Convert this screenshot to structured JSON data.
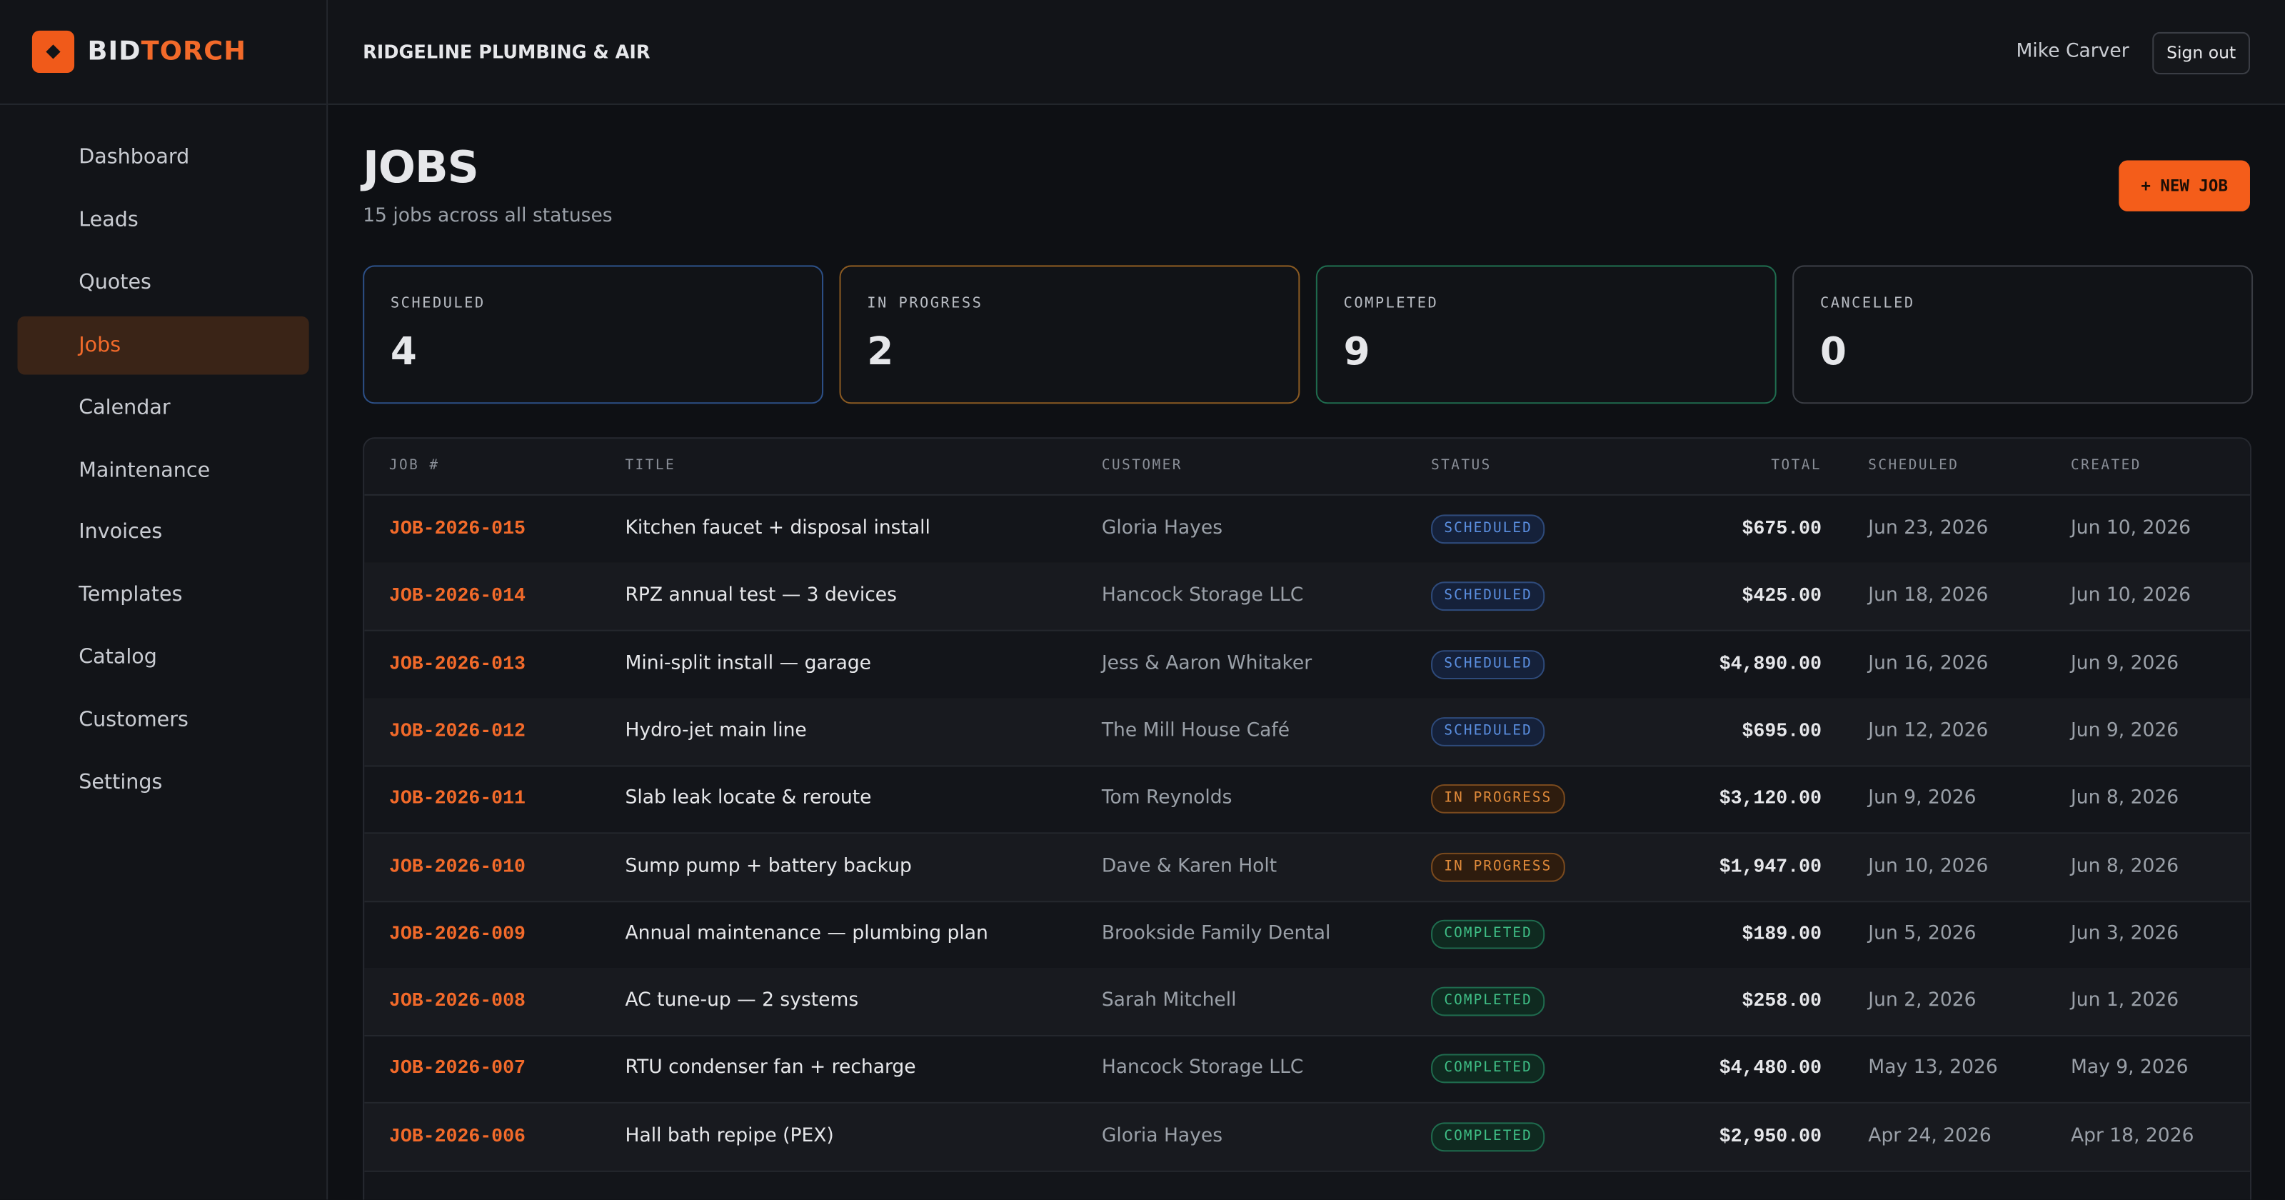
{
  "brand": {
    "part1": "BID",
    "part2": "TORCH"
  },
  "header": {
    "company": "RIDGELINE PLUMBING & AIR",
    "user": "Mike Carver",
    "sign_out": "Sign out"
  },
  "nav": [
    "Dashboard",
    "Leads",
    "Quotes",
    "Jobs",
    "Calendar",
    "Maintenance",
    "Invoices",
    "Templates",
    "Catalog",
    "Customers",
    "Settings"
  ],
  "page": {
    "title": "JOBS",
    "subtitle": "15 jobs across all statuses",
    "new_button": "+ NEW JOB"
  },
  "stats": [
    {
      "label": "SCHEDULED",
      "value": "4"
    },
    {
      "label": "IN PROGRESS",
      "value": "2"
    },
    {
      "label": "COMPLETED",
      "value": "9"
    },
    {
      "label": "CANCELLED",
      "value": "0"
    }
  ],
  "table": {
    "headers": [
      "JOB #",
      "TITLE",
      "CUSTOMER",
      "STATUS",
      "TOTAL",
      "SCHEDULED",
      "CREATED"
    ],
    "rows": [
      [
        "JOB-2026-015",
        "Kitchen faucet + disposal install",
        "Gloria Hayes",
        "SCHEDULED",
        "$675.00",
        "Jun 23, 2026",
        "Jun 10, 2026"
      ],
      [
        "JOB-2026-014",
        "RPZ annual test — 3 devices",
        "Hancock Storage LLC",
        "SCHEDULED",
        "$425.00",
        "Jun 18, 2026",
        "Jun 10, 2026"
      ],
      [
        "JOB-2026-013",
        "Mini-split install — garage",
        "Jess & Aaron Whitaker",
        "SCHEDULED",
        "$4,890.00",
        "Jun 16, 2026",
        "Jun 9, 2026"
      ],
      [
        "JOB-2026-012",
        "Hydro-jet main line",
        "The Mill House Café",
        "SCHEDULED",
        "$695.00",
        "Jun 12, 2026",
        "Jun 9, 2026"
      ],
      [
        "JOB-2026-011",
        "Slab leak locate & reroute",
        "Tom Reynolds",
        "IN PROGRESS",
        "$3,120.00",
        "Jun 9, 2026",
        "Jun 8, 2026"
      ],
      [
        "JOB-2026-010",
        "Sump pump + battery backup",
        "Dave & Karen Holt",
        "IN PROGRESS",
        "$1,947.00",
        "Jun 10, 2026",
        "Jun 8, 2026"
      ],
      [
        "JOB-2026-009",
        "Annual maintenance — plumbing plan",
        "Brookside Family Dental",
        "COMPLETED",
        "$189.00",
        "Jun 5, 2026",
        "Jun 3, 2026"
      ],
      [
        "JOB-2026-008",
        "AC tune-up — 2 systems",
        "Sarah Mitchell",
        "COMPLETED",
        "$258.00",
        "Jun 2, 2026",
        "Jun 1, 2026"
      ],
      [
        "JOB-2026-007",
        "RTU condenser fan + recharge",
        "Hancock Storage LLC",
        "COMPLETED",
        "$4,480.00",
        "May 13, 2026",
        "May 9, 2026"
      ],
      [
        "JOB-2026-006",
        "Hall bath repipe (PEX)",
        "Gloria Hayes",
        "COMPLETED",
        "$2,950.00",
        "Apr 24, 2026",
        "Apr 18, 2026"
      ]
    ]
  }
}
